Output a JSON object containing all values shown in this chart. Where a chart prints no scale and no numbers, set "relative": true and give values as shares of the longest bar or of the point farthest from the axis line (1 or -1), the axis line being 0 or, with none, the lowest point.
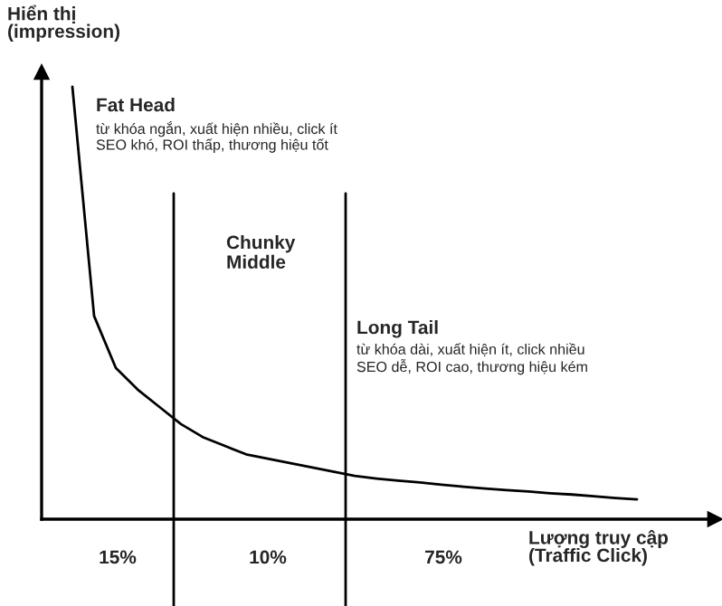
{
  "chart_data": {
    "type": "line",
    "relative": true,
    "xlabel": "Lượng truy cập\n(Traffic Click)",
    "ylabel": "Hiển thị\n(impression)",
    "categories": [
      null,
      null,
      null,
      null,
      null,
      null,
      null,
      null,
      null,
      null,
      null,
      null,
      null,
      null,
      null,
      null,
      null,
      null,
      null,
      null,
      null,
      null,
      null,
      null,
      null,
      null,
      null
    ],
    "series": [
      {
        "color": "#000000",
        "values": [
          1.0,
          0.47,
          0.35,
          0.3,
          0.26,
          0.22,
          0.19,
          0.17,
          0.15,
          0.14,
          0.13,
          0.12,
          0.11,
          0.1,
          0.094,
          0.089,
          0.085,
          0.08,
          0.075,
          0.071,
          0.067,
          0.064,
          0.06,
          0.057,
          0.053,
          0.049,
          0.046
        ]
      }
    ],
    "marker": "none",
    "line_style": "solid",
    "annotations": [
      "Fat Head",
      "từ khóa ngắn, xuất hiện nhiều, click ít\nSEO khó, ROI thấp, thương hiệu tốt",
      "Chunky\nMiddle",
      "Long Tail",
      "từ khóa dài, xuất hiện ít, click nhiều\nSEO dễ, ROI cao, thương hiệu kém",
      "15%",
      "10%",
      "75%"
    ]
  }
}
